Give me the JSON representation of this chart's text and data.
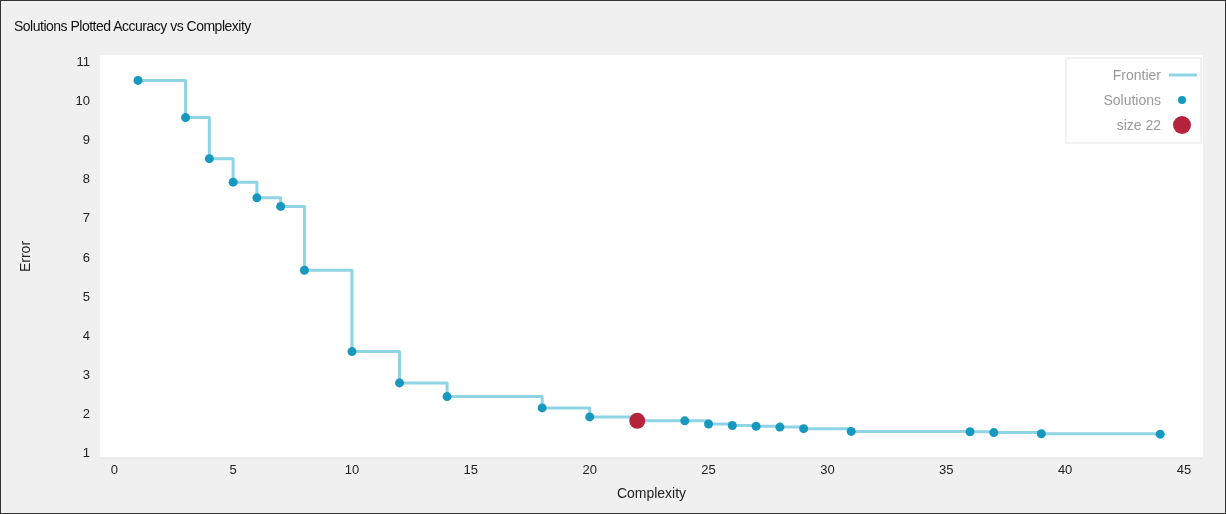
{
  "chart_data": {
    "type": "scatter",
    "title": "Solutions Plotted Accuracy vs Complexity",
    "xlabel": "Complexity",
    "ylabel": "Error",
    "xlim": [
      -0.6,
      45.8
    ],
    "ylim": [
      0.85,
      11.15
    ],
    "xticks": [
      0,
      5,
      10,
      15,
      20,
      25,
      30,
      35,
      40,
      45
    ],
    "yticks": [
      1,
      2,
      3,
      4,
      5,
      6,
      7,
      8,
      9,
      10,
      11
    ],
    "grid": false,
    "legend": "top right",
    "series": [
      {
        "name": "Frontier",
        "type": "step",
        "color": "#8fd4e4",
        "x": [
          1,
          3,
          4,
          5,
          6,
          7,
          8,
          10,
          12,
          14,
          18,
          20,
          22,
          24,
          25,
          26,
          27,
          28,
          29,
          31,
          36,
          37,
          39,
          44
        ],
        "values": [
          10.5,
          9.55,
          8.5,
          7.9,
          7.5,
          7.28,
          5.65,
          3.57,
          2.77,
          2.42,
          2.13,
          1.9,
          1.8,
          1.8,
          1.72,
          1.68,
          1.66,
          1.64,
          1.6,
          1.53,
          1.52,
          1.5,
          1.47,
          1.46
        ]
      },
      {
        "name": "Solutions",
        "color": "#1798be",
        "marker": "circle",
        "x": [
          1,
          3,
          4,
          5,
          6,
          7,
          8,
          10,
          12,
          14,
          18,
          20,
          24,
          25,
          26,
          27,
          28,
          29,
          31,
          36,
          37,
          39,
          44
        ],
        "values": [
          10.5,
          9.55,
          8.5,
          7.9,
          7.5,
          7.28,
          5.65,
          3.57,
          2.77,
          2.42,
          2.13,
          1.9,
          1.8,
          1.72,
          1.68,
          1.66,
          1.64,
          1.6,
          1.53,
          1.52,
          1.5,
          1.47,
          1.46
        ]
      },
      {
        "name": "size 22",
        "color": "#b5223c",
        "marker": "circle",
        "x": [
          22
        ],
        "values": [
          1.8
        ]
      }
    ]
  }
}
